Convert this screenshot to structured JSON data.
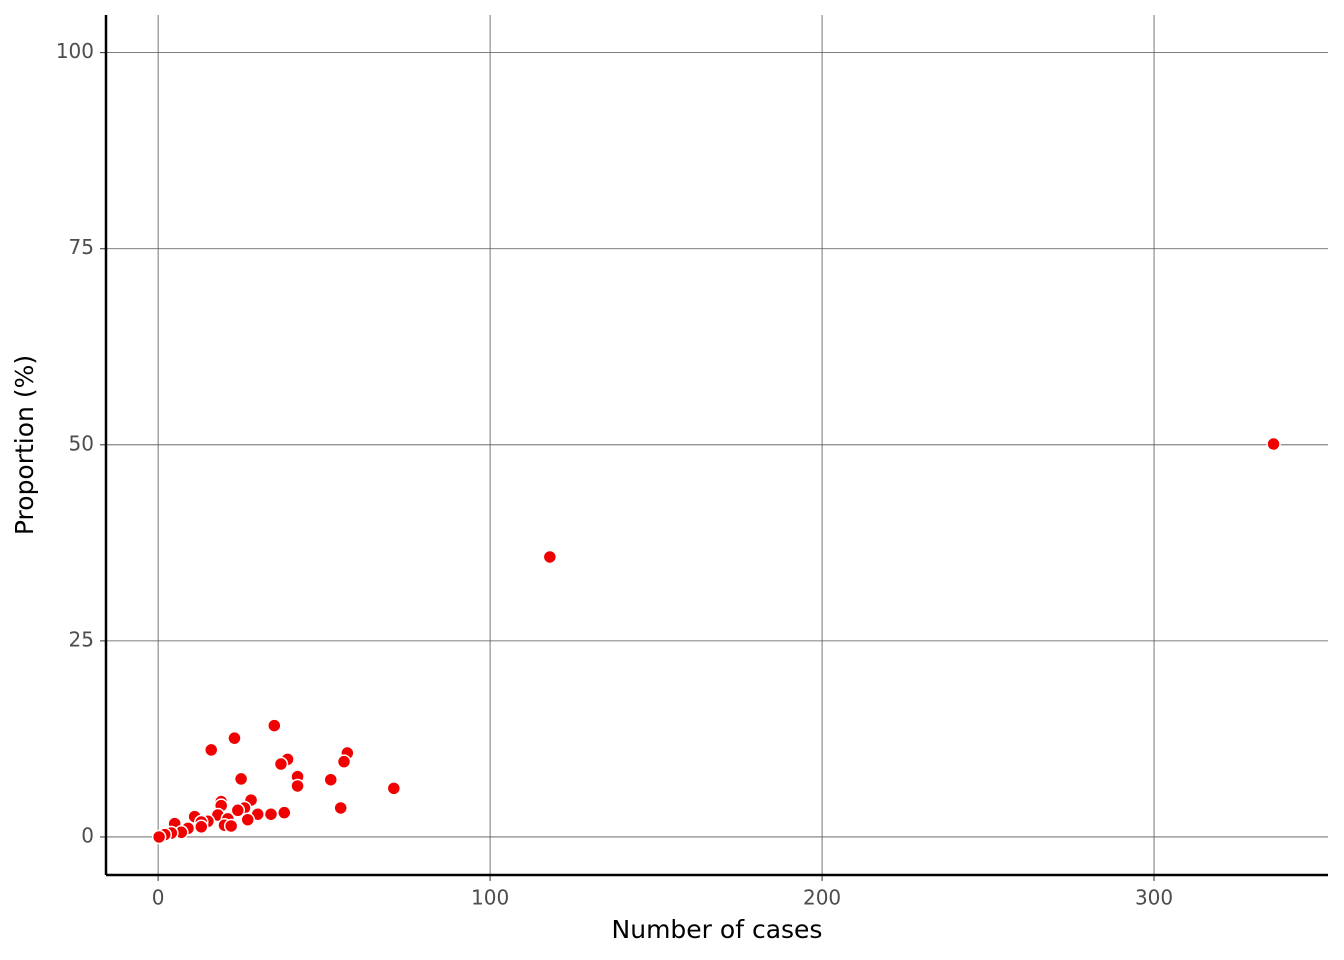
{
  "chart_data": {
    "type": "scatter",
    "x_label": "Number of cases",
    "y_label": "Proportion (%)",
    "x": [
      336,
      118,
      35,
      23,
      16,
      57,
      39,
      37,
      56,
      25,
      42,
      52,
      42,
      71,
      28,
      19,
      19,
      55,
      26,
      24,
      30,
      34,
      38,
      18,
      11,
      15,
      21,
      27,
      13,
      5,
      20,
      22,
      13,
      9,
      7,
      4,
      2,
      0.3
    ],
    "values": [
      50.1,
      35.7,
      14.2,
      12.6,
      11.1,
      10.7,
      9.9,
      9.3,
      9.6,
      7.4,
      7.7,
      7.3,
      6.5,
      6.2,
      4.7,
      4.5,
      4.0,
      3.7,
      3.7,
      3.4,
      2.9,
      2.9,
      3.1,
      2.8,
      2.6,
      2.0,
      2.3,
      2.2,
      1.9,
      1.7,
      1.5,
      1.4,
      1.3,
      1.1,
      0.6,
      0.5,
      0.3,
      0
    ],
    "color": "#f00000",
    "xlim": [
      -15.7,
      352.4
    ],
    "xticks": [
      0,
      100,
      200,
      300
    ],
    "ylim": [
      -4.85,
      104.8
    ],
    "yticks": [
      0,
      25,
      50,
      75,
      100
    ],
    "grid": true
  }
}
